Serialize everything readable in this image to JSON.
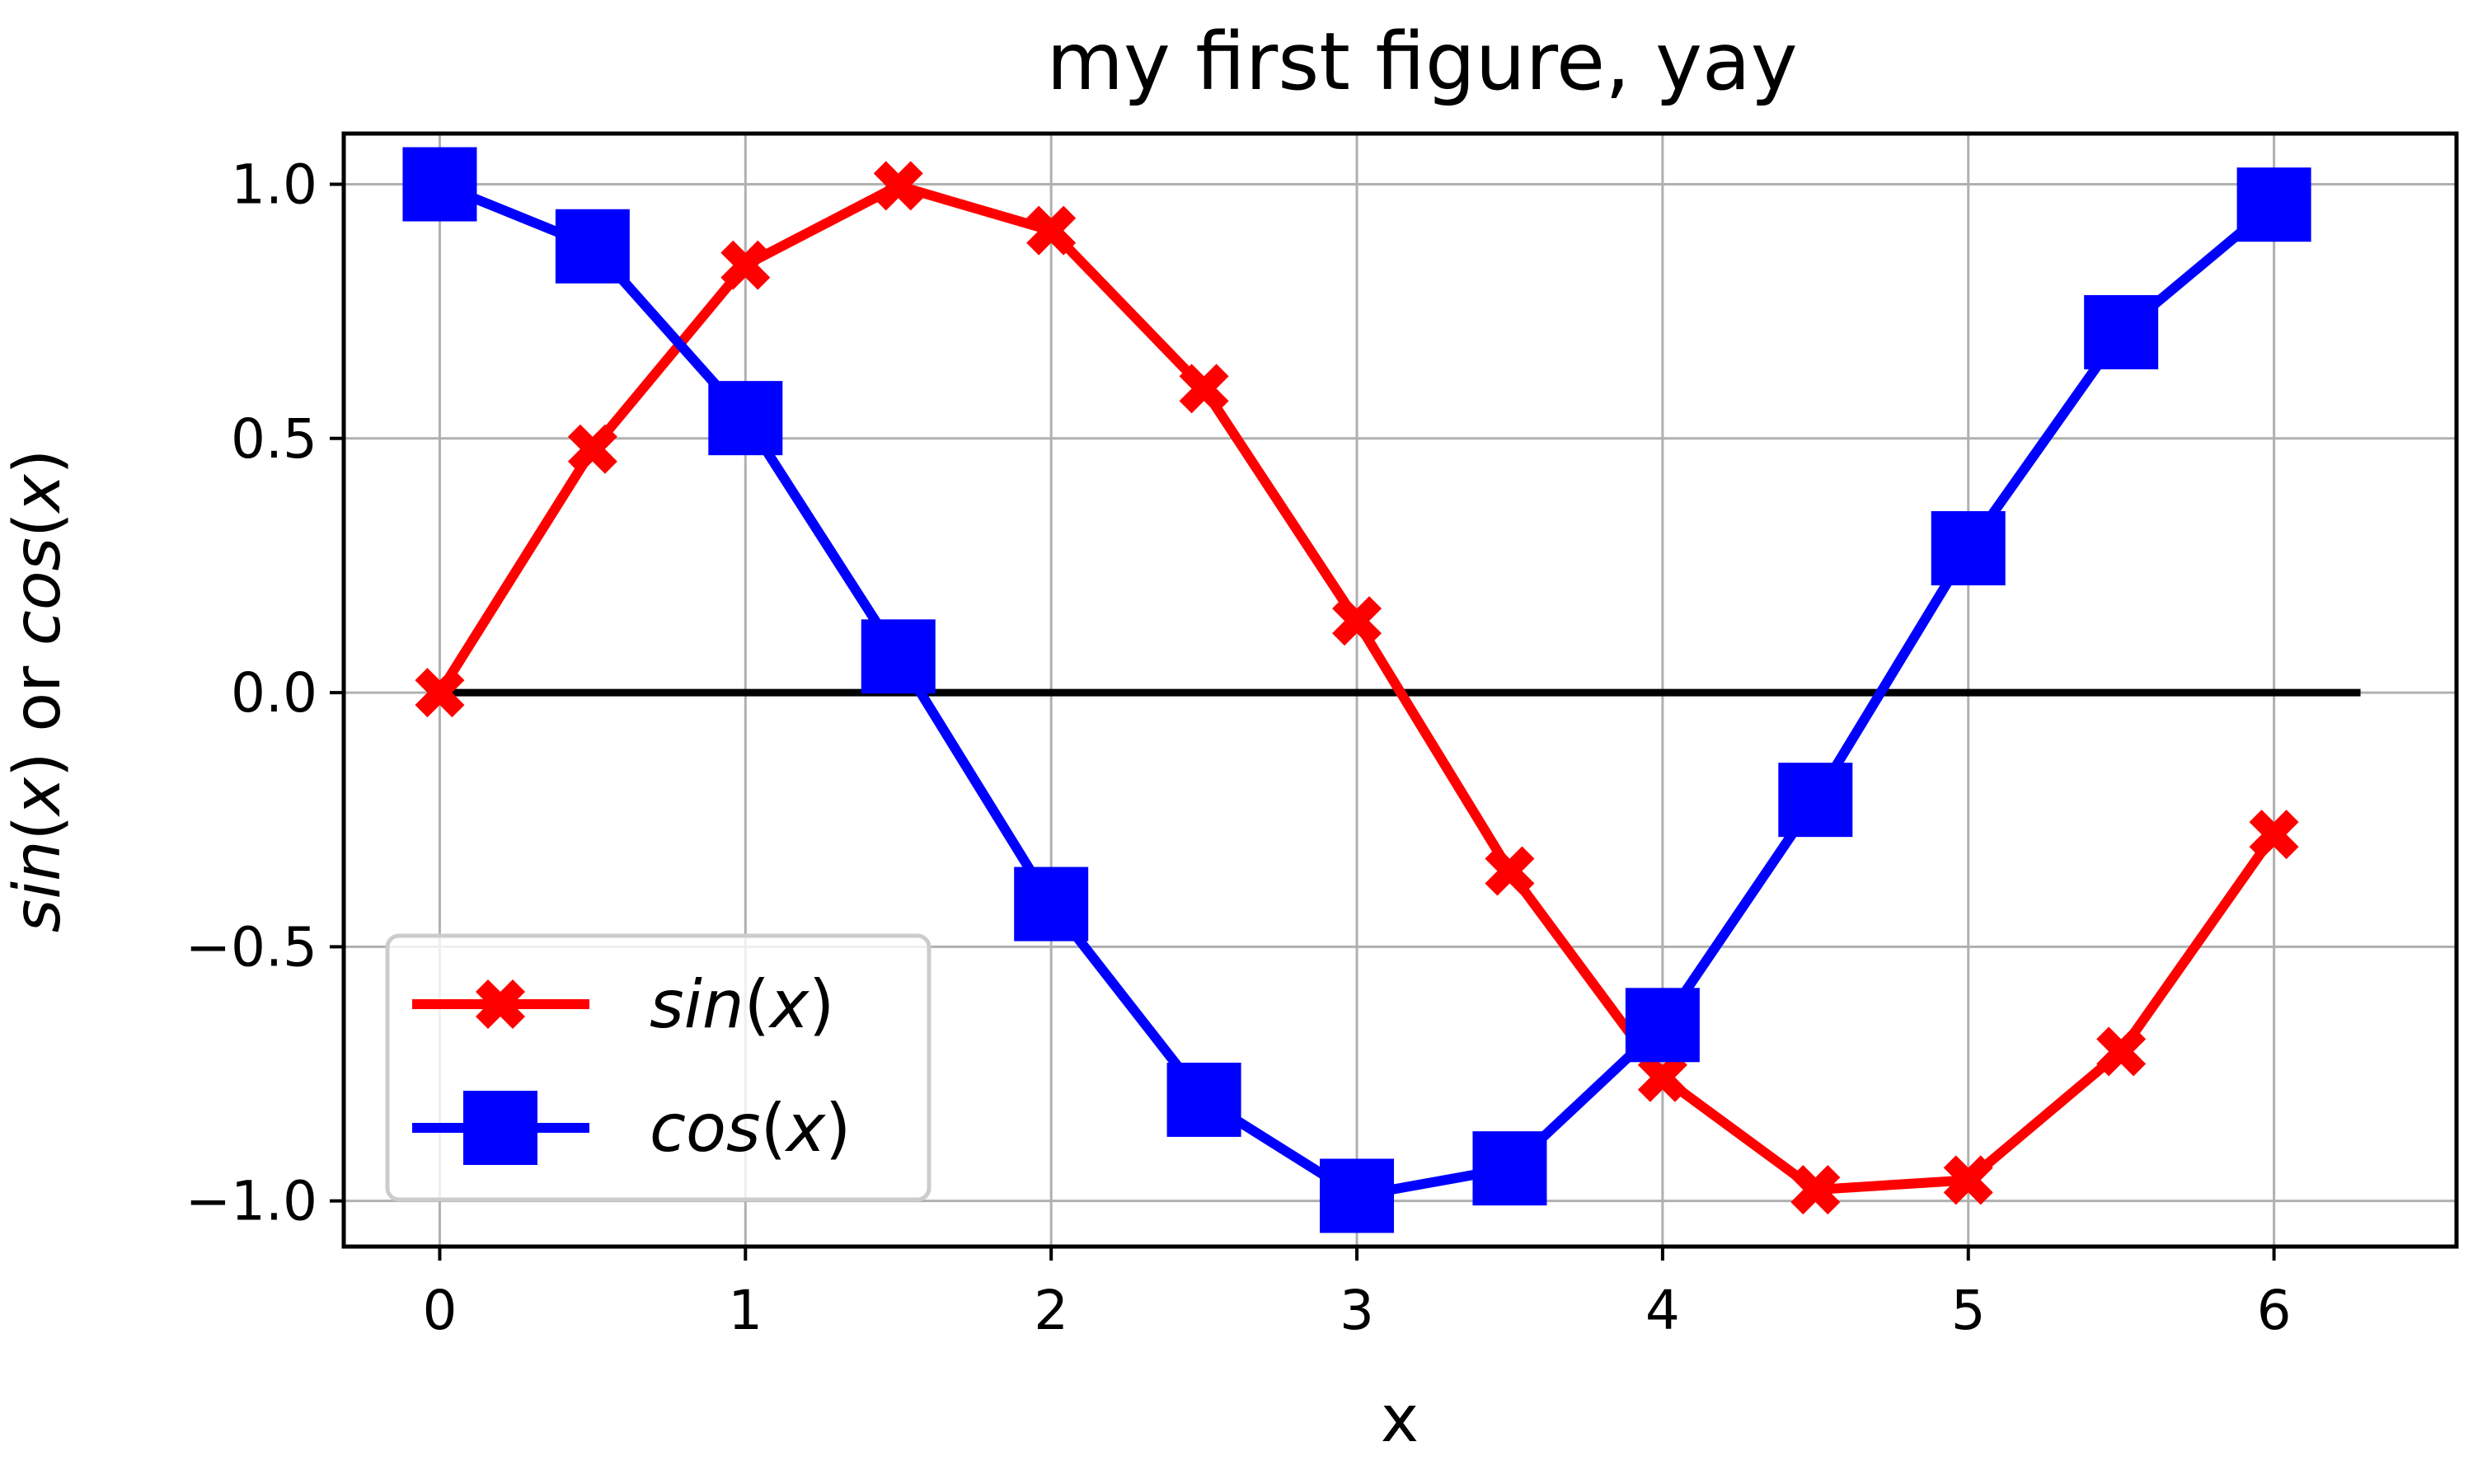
{
  "chart_data": {
    "type": "line",
    "title": "my first figure, yay",
    "xlabel": "x",
    "ylabel": {
      "sin": "sin",
      "open1": "(",
      "x1": "x",
      "close1": ")",
      "or": " or ",
      "cos": "cos",
      "open2": "(",
      "x2": "x",
      "close2": ")"
    },
    "xlim": [
      -0.314,
      6.597
    ],
    "ylim": [
      -1.0898,
      1.0998
    ],
    "xticks": [
      0,
      1,
      2,
      3,
      4,
      5,
      6
    ],
    "xtick_labels": [
      "0",
      "1",
      "2",
      "3",
      "4",
      "5",
      "6"
    ],
    "yticks": [
      1.0,
      0.5,
      0.0,
      -0.5,
      -1.0
    ],
    "ytick_labels": [
      "1.0",
      "0.5",
      "0.0",
      "−0.5",
      "−1.0"
    ],
    "grid": true,
    "legend_position": "lower-left",
    "x": [
      0.0,
      0.5,
      1.0,
      1.5,
      2.0,
      2.5,
      3.0,
      3.5,
      4.0,
      4.5,
      5.0,
      5.5,
      6.0
    ],
    "series": [
      {
        "name": {
          "fn": "sin",
          "open": "(",
          "var": "x",
          "close": ")"
        },
        "color": "#ff0000",
        "marker": "x-filled",
        "values": [
          0.0,
          0.479,
          0.841,
          0.997,
          0.909,
          0.598,
          0.141,
          -0.351,
          -0.757,
          -0.978,
          -0.959,
          -0.706,
          -0.279
        ]
      },
      {
        "name": {
          "fn": "cos",
          "open": "(",
          "var": "x",
          "close": ")"
        },
        "color": "#0000ff",
        "marker": "square",
        "values": [
          1.0,
          0.878,
          0.54,
          0.071,
          -0.416,
          -0.801,
          -0.99,
          -0.936,
          -0.654,
          -0.211,
          0.284,
          0.709,
          0.96
        ]
      }
    ],
    "hline": {
      "y": 0.0,
      "x_from": 0.0,
      "x_to": 6.283,
      "color": "#000000"
    }
  }
}
